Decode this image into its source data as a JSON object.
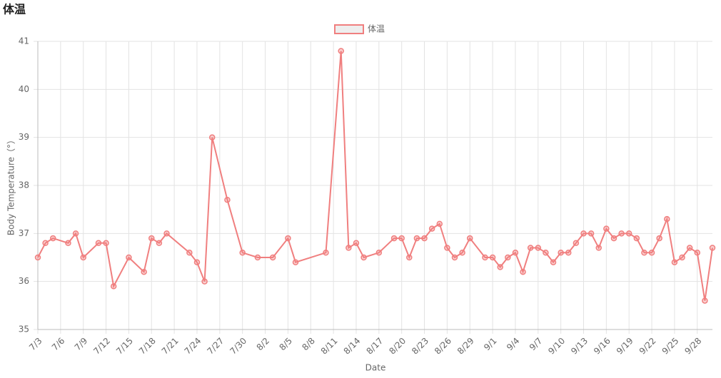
{
  "chart_data": {
    "type": "line",
    "title": "体温",
    "x_label": "Date",
    "y_label": "Body Temperature（°）",
    "categories": [
      "7/3",
      null,
      null,
      "7/6",
      null,
      null,
      "7/9",
      null,
      null,
      "7/12",
      null,
      null,
      "7/15",
      null,
      null,
      "7/18",
      null,
      null,
      "7/21",
      null,
      null,
      "7/24",
      null,
      null,
      "7/27",
      null,
      null,
      "7/30",
      null,
      null,
      "8/2",
      null,
      null,
      "8/5",
      null,
      null,
      "8/8",
      null,
      null,
      "8/11",
      null,
      null,
      "8/14",
      null,
      null,
      "8/17",
      null,
      null,
      "8/20",
      null,
      null,
      "8/23",
      null,
      null,
      "8/26",
      null,
      null,
      "8/29",
      null,
      null,
      "9/1",
      null,
      null,
      "9/4",
      null,
      null,
      "9/7",
      null,
      null,
      "9/10",
      null,
      null,
      "9/13",
      null,
      null,
      "9/16",
      null,
      null,
      "9/19",
      null,
      null,
      "9/22",
      null,
      null,
      "9/25",
      null,
      null,
      "9/28",
      null,
      null
    ],
    "series": [
      {
        "name": "体温",
        "color": "#f07f7f",
        "values": [
          36.5,
          36.8,
          36.9,
          null,
          36.8,
          37.0,
          36.5,
          null,
          36.8,
          36.8,
          35.9,
          null,
          36.5,
          null,
          36.2,
          36.9,
          36.8,
          37.0,
          null,
          null,
          36.6,
          36.4,
          36.0,
          39.0,
          null,
          37.7,
          null,
          36.6,
          null,
          36.5,
          null,
          36.5,
          null,
          36.9,
          36.4,
          null,
          null,
          null,
          36.6,
          null,
          40.8,
          36.7,
          36.8,
          36.5,
          null,
          36.6,
          null,
          36.9,
          36.9,
          36.5,
          36.9,
          36.9,
          37.1,
          37.2,
          36.7,
          36.5,
          36.6,
          36.9,
          null,
          36.5,
          36.5,
          36.3,
          36.5,
          36.6,
          36.2,
          36.7,
          36.7,
          36.6,
          36.4,
          36.6,
          36.6,
          36.8,
          37.0,
          37.0,
          36.7,
          37.1,
          36.9,
          37.0,
          37.0,
          36.9,
          36.6,
          36.6,
          36.9,
          37.3,
          36.4,
          36.5,
          36.7,
          36.6,
          35.6,
          36.7
        ]
      }
    ],
    "ylim": [
      35,
      41
    ],
    "yticks": [
      35,
      36,
      37,
      38,
      39,
      40,
      41
    ],
    "grid": true,
    "span_gaps": true,
    "legend": "top"
  }
}
